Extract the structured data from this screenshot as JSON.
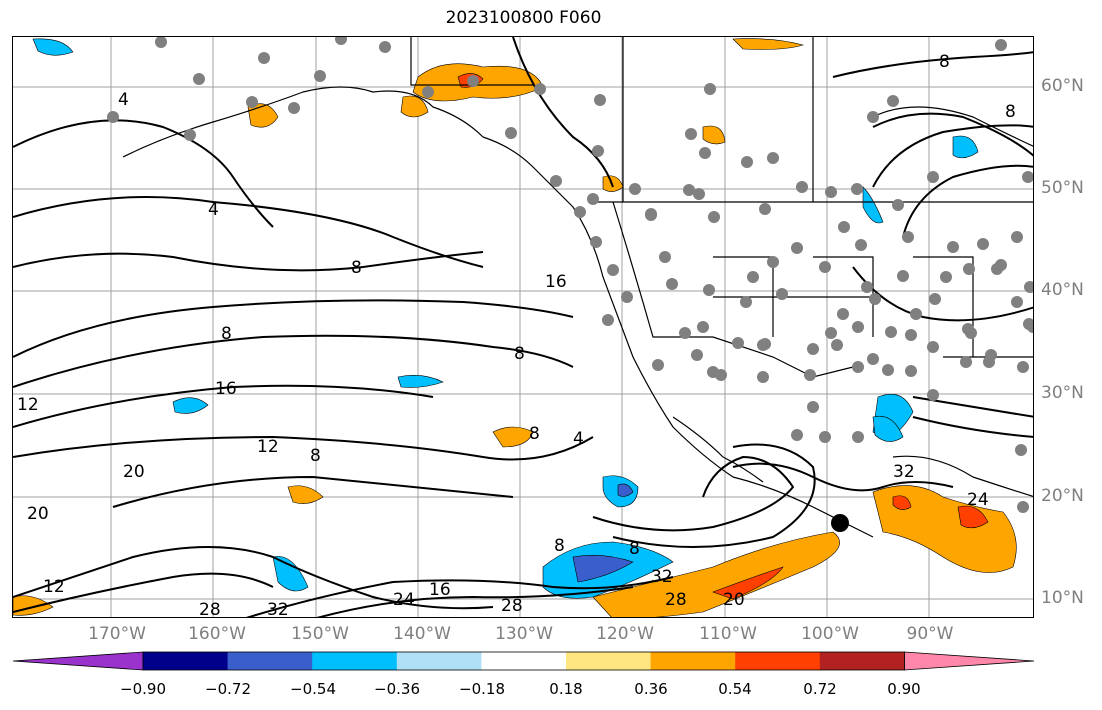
{
  "title": "2023100800 F060",
  "lat_labels": [
    "60°N",
    "50°N",
    "40°N",
    "30°N",
    "20°N",
    "10°N"
  ],
  "lon_labels": [
    "170°W",
    "160°W",
    "150°W",
    "140°W",
    "130°W",
    "120°W",
    "110°W",
    "100°W",
    "90°W"
  ],
  "colorbar": {
    "tick_labels": [
      "−0.90",
      "−0.72",
      "−0.54",
      "−0.36",
      "−0.18",
      "0.18",
      "0.36",
      "0.54",
      "0.72",
      "0.90"
    ],
    "colors": [
      "#9933cc",
      "#00008b",
      "#3a5fcd",
      "#00bfff",
      "#b0e0f8",
      "#ffffff",
      "#ffe680",
      "#ffa500",
      "#ff4000",
      "#b22222",
      "#ff88aa"
    ]
  },
  "contour_labels": [
    "4",
    "8",
    "12",
    "16",
    "20",
    "24",
    "28",
    "32"
  ],
  "map_colors": {
    "land_outline": "#000000",
    "contour": "#000000",
    "grid": "#a0a0a0",
    "station_dot": "#808080",
    "marker": "#000000"
  }
}
